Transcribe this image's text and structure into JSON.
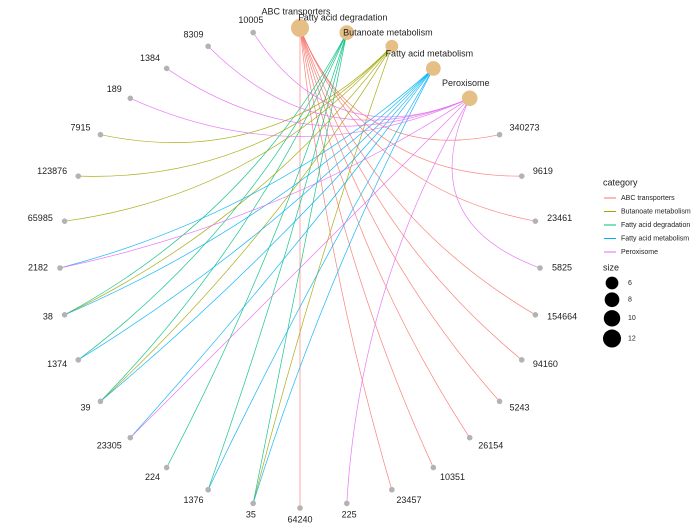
{
  "chart_data": {
    "type": "network",
    "legend_title_color": "category",
    "legend_title_size": "size",
    "size_legend": [
      6,
      8,
      10,
      12
    ],
    "categories": [
      {
        "name": "ABC transporters",
        "color": "#F8766D",
        "size": 12
      },
      {
        "name": "Fatty acid degradation",
        "color": "#00BF7D",
        "size": 8
      },
      {
        "name": "Butanoate metabolism",
        "color": "#A3A500",
        "size": 6
      },
      {
        "name": "Fatty acid metabolism",
        "color": "#00B0F6",
        "size": 8
      },
      {
        "name": "Peroxisome",
        "color": "#E76BF3",
        "size": 9
      }
    ],
    "legend_order": [
      "ABC transporters",
      "Butanoate metabolism",
      "Fatty acid degradation",
      "Fatty acid metabolism",
      "Peroxisome"
    ],
    "genes": [
      {
        "name": "340273",
        "categories": [
          "ABC transporters"
        ]
      },
      {
        "name": "9619",
        "categories": [
          "ABC transporters"
        ]
      },
      {
        "name": "23461",
        "categories": [
          "ABC transporters"
        ]
      },
      {
        "name": "5825",
        "categories": [
          "Peroxisome"
        ]
      },
      {
        "name": "154664",
        "categories": [
          "ABC transporters"
        ]
      },
      {
        "name": "94160",
        "categories": [
          "ABC transporters"
        ]
      },
      {
        "name": "5243",
        "categories": [
          "ABC transporters"
        ]
      },
      {
        "name": "26154",
        "categories": [
          "ABC transporters"
        ]
      },
      {
        "name": "10351",
        "categories": [
          "ABC transporters"
        ]
      },
      {
        "name": "23457",
        "categories": [
          "ABC transporters"
        ]
      },
      {
        "name": "225",
        "categories": [
          "Peroxisome"
        ]
      },
      {
        "name": "64240",
        "categories": [
          "ABC transporters"
        ]
      },
      {
        "name": "35",
        "categories": [
          "Fatty acid degradation",
          "Butanoate metabolism",
          "Fatty acid metabolism"
        ]
      },
      {
        "name": "1376",
        "categories": [
          "Fatty acid degradation",
          "Fatty acid metabolism"
        ]
      },
      {
        "name": "224",
        "categories": [
          "Fatty acid degradation"
        ]
      },
      {
        "name": "23305",
        "categories": [
          "Fatty acid metabolism",
          "Peroxisome"
        ]
      },
      {
        "name": "39",
        "categories": [
          "Fatty acid degradation",
          "Butanoate metabolism",
          "Fatty acid metabolism"
        ]
      },
      {
        "name": "1374",
        "categories": [
          "Fatty acid degradation",
          "Fatty acid metabolism"
        ]
      },
      {
        "name": "38",
        "categories": [
          "Fatty acid degradation",
          "Butanoate metabolism",
          "Fatty acid metabolism"
        ]
      },
      {
        "name": "2182",
        "categories": [
          "Fatty acid metabolism",
          "Peroxisome"
        ]
      },
      {
        "name": "65985",
        "categories": [
          "Butanoate metabolism"
        ]
      },
      {
        "name": "123876",
        "categories": [
          "Butanoate metabolism"
        ]
      },
      {
        "name": "7915",
        "categories": [
          "Butanoate metabolism"
        ]
      },
      {
        "name": "189",
        "categories": [
          "Peroxisome"
        ]
      },
      {
        "name": "1384",
        "categories": [
          "Peroxisome"
        ]
      },
      {
        "name": "8309",
        "categories": [
          "Peroxisome"
        ]
      },
      {
        "name": "10005",
        "categories": [
          "Peroxisome"
        ]
      }
    ]
  }
}
